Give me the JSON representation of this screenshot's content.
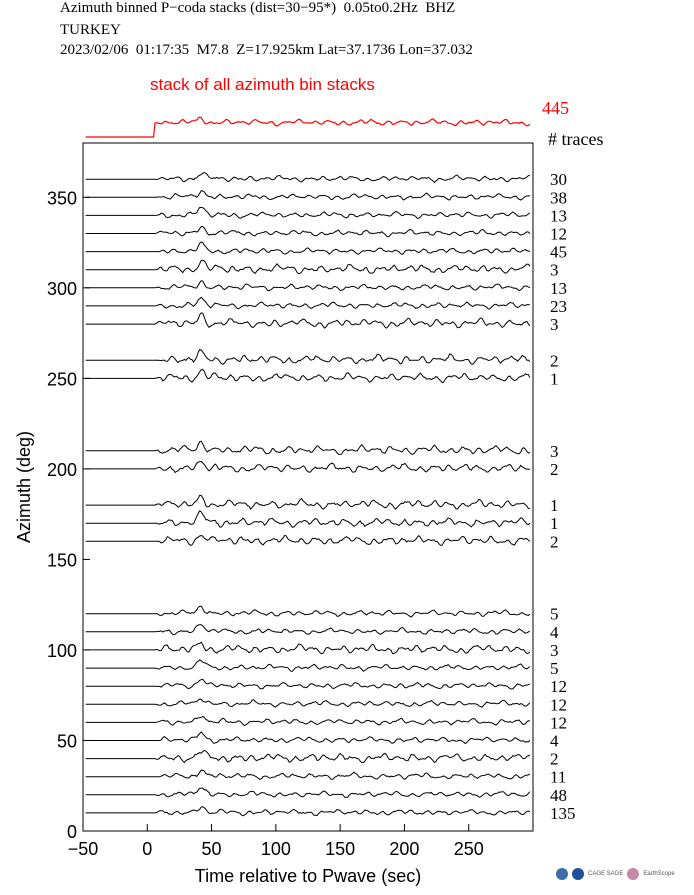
{
  "header": {
    "line1": "Azimuth binned P−coda stacks (dist=30−95*)  0.05to0.2Hz  BHZ",
    "line2": "TURKEY",
    "line3": "2023/02/06  01:17:35  M7.8  Z=17.925km Lat=37.1736 Lon=37.032"
  },
  "summary": {
    "label": "stack of all azimuth bin stacks",
    "count": "445",
    "color": "#ff0000"
  },
  "traces_header": "# traces",
  "chart_data": {
    "type": "line",
    "title": "Azimuth binned P−coda stacks (dist=30−95*)  0.05to0.2Hz  BHZ",
    "xlabel": "Time relative to Pwave (sec)",
    "ylabel": "Azimuth (deg)",
    "xlim": [
      -50,
      300
    ],
    "ylim": [
      0,
      380
    ],
    "x_ticks": [
      "−50",
      "0",
      "50",
      "100",
      "150",
      "200",
      "250"
    ],
    "x_tick_values": [
      -50,
      0,
      50,
      100,
      150,
      200,
      250
    ],
    "y_ticks": [
      "0",
      "50",
      "100",
      "150",
      "200",
      "250",
      "300",
      "350"
    ],
    "y_tick_values": [
      0,
      50,
      100,
      150,
      200,
      250,
      300,
      350
    ],
    "trace_color": "#000000",
    "series": [
      {
        "azimuth": 360,
        "count": "30"
      },
      {
        "azimuth": 350,
        "count": "38"
      },
      {
        "azimuth": 340,
        "count": "13"
      },
      {
        "azimuth": 330,
        "count": "12"
      },
      {
        "azimuth": 320,
        "count": "45"
      },
      {
        "azimuth": 310,
        "count": "3"
      },
      {
        "azimuth": 300,
        "count": "13"
      },
      {
        "azimuth": 290,
        "count": "23"
      },
      {
        "azimuth": 280,
        "count": "3"
      },
      {
        "azimuth": 260,
        "count": "2"
      },
      {
        "azimuth": 250,
        "count": "1"
      },
      {
        "azimuth": 210,
        "count": "3"
      },
      {
        "azimuth": 200,
        "count": "2"
      },
      {
        "azimuth": 180,
        "count": "1"
      },
      {
        "azimuth": 170,
        "count": "1"
      },
      {
        "azimuth": 160,
        "count": "2"
      },
      {
        "azimuth": 120,
        "count": "5"
      },
      {
        "azimuth": 110,
        "count": "4"
      },
      {
        "azimuth": 100,
        "count": "3"
      },
      {
        "azimuth": 90,
        "count": "5"
      },
      {
        "azimuth": 80,
        "count": "12"
      },
      {
        "azimuth": 70,
        "count": "12"
      },
      {
        "azimuth": 60,
        "count": "12"
      },
      {
        "azimuth": 50,
        "count": "4"
      },
      {
        "azimuth": 40,
        "count": "2"
      },
      {
        "azimuth": 30,
        "count": "11"
      },
      {
        "azimuth": 20,
        "count": "48"
      },
      {
        "azimuth": 10,
        "count": "135"
      }
    ]
  },
  "logos": [
    "CAGE SAGE",
    "EarthScope"
  ]
}
